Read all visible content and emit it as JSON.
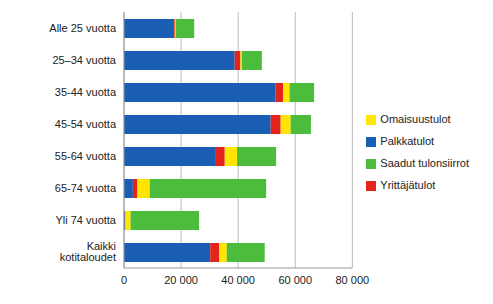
{
  "chart_data": {
    "type": "bar",
    "orientation": "horizontal",
    "stacked": true,
    "grid": true,
    "legend": "right",
    "categories": [
      "Alle 25 vuotta",
      "25–34 vuotta",
      "35-44 vuotta",
      "45-54 vuotta",
      "55-64 vuotta",
      "65-74 vuotta",
      "Yli 74 vuotta",
      "Kaikki kotitaloudet"
    ],
    "series": [
      {
        "name": "Palkkatulot",
        "color": "#1a5fb4",
        "values": [
          17500,
          38800,
          53000,
          51400,
          32200,
          3100,
          300,
          30200
        ]
      },
      {
        "name": "Yrittäjätulot",
        "color": "#e3231c",
        "values": [
          300,
          2000,
          2700,
          3500,
          3100,
          1600,
          200,
          3100
        ]
      },
      {
        "name": "Omaisuustulot",
        "color": "#ffe500",
        "values": [
          300,
          500,
          2300,
          3500,
          4300,
          4300,
          1800,
          2700
        ]
      },
      {
        "name": "Saadut tulonsiirrot",
        "color": "#4cbc3c",
        "values": [
          6500,
          7000,
          8600,
          7100,
          13700,
          40800,
          24000,
          13300
        ]
      }
    ],
    "xlim": [
      0,
      80000
    ],
    "xticks": [
      0,
      {
        "value": 20000,
        "label": "20 000"
      },
      {
        "value": 40000,
        "label": "40 000"
      },
      {
        "value": 60000,
        "label": "60 000"
      },
      {
        "value": 80000,
        "label": "80 000"
      }
    ]
  }
}
